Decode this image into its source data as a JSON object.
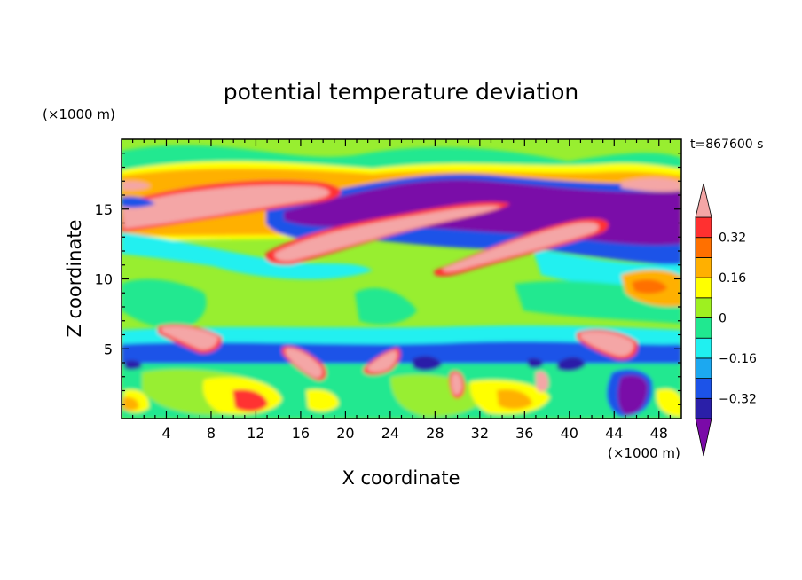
{
  "chart_data": {
    "type": "heatmap",
    "subtype": "filled-contour",
    "title": "potential temperature deviation",
    "xlabel": "X coordinate",
    "ylabel": "Z coordinate",
    "x_unit": "(×1000 m)",
    "y_unit": "(×1000 m)",
    "time_label": "t=867600 s",
    "xlim": [
      0,
      50
    ],
    "ylim": [
      0,
      20
    ],
    "x_ticks": [
      4,
      8,
      12,
      16,
      20,
      24,
      28,
      32,
      36,
      40,
      44,
      48
    ],
    "y_ticks": [
      5,
      10,
      15
    ],
    "colorbar": {
      "levels": [
        -0.4,
        -0.32,
        -0.24,
        -0.16,
        -0.08,
        0,
        0.08,
        0.16,
        0.24,
        0.32,
        0.4
      ],
      "labeled_levels": [
        -0.32,
        -0.16,
        0,
        0.16,
        0.32
      ],
      "tick_labels": [
        "0.32",
        "0.16",
        "0",
        "−0.16",
        "−0.32"
      ],
      "colors": [
        "#7a0aa8",
        "#2a1fa8",
        "#1c53e8",
        "#1ca8f0",
        "#20f0f0",
        "#20e890",
        "#9ef020",
        "#ffff00",
        "#ffb000",
        "#ff7000",
        "#ff3030",
        "#f4a6a6"
      ],
      "extend": "both"
    },
    "background": "#98ee30"
  }
}
